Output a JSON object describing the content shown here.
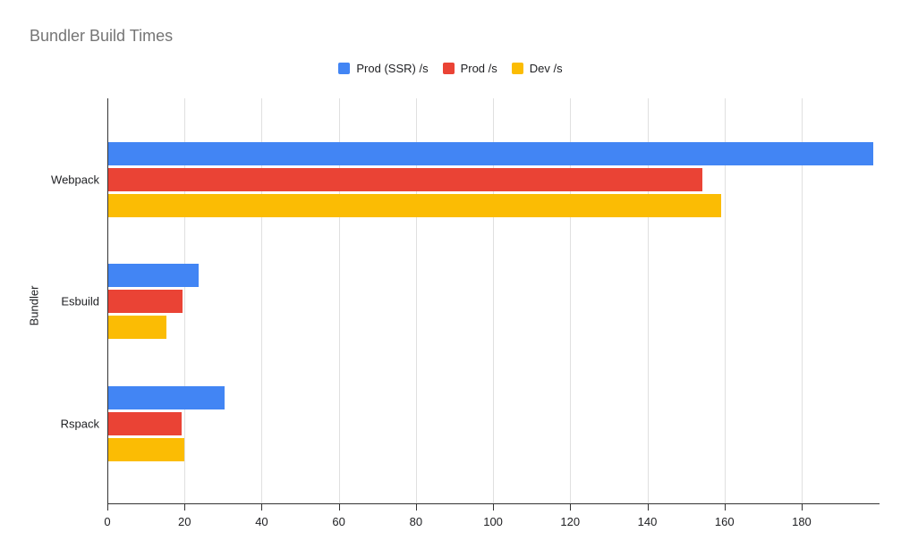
{
  "chart_data": {
    "type": "bar",
    "orientation": "horizontal",
    "title": "Bundler Build Times",
    "xlabel": "",
    "ylabel": "Bundler",
    "categories": [
      "Webpack",
      "Esbuild",
      "Rspack"
    ],
    "series": [
      {
        "key": "prod-ssr",
        "name": "Prod (SSR) /s",
        "color": "#4285F4",
        "values": [
          198.5,
          23.6,
          30.5
        ]
      },
      {
        "key": "prod",
        "name": "Prod /s",
        "color": "#EA4335",
        "values": [
          154.2,
          19.5,
          19.2
        ]
      },
      {
        "key": "dev",
        "name": "Dev /s",
        "color": "#FBBC04",
        "values": [
          159.2,
          15.3,
          20.0
        ]
      }
    ],
    "xlim": [
      0,
      199.5
    ],
    "x_ticks": [
      0,
      20,
      40,
      60,
      80,
      100,
      120,
      140,
      160,
      180
    ],
    "grid": true,
    "legend_position": "top-center"
  },
  "style": {
    "title_color": "#757575",
    "axis_text_color": "#202124",
    "gridline_color": "#e0e0e0",
    "axis_line_color": "#333333",
    "background": "#ffffff"
  }
}
